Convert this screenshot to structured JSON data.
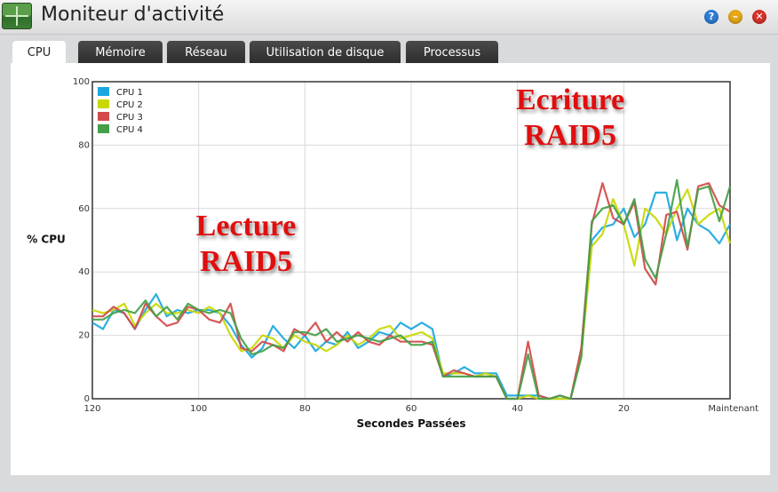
{
  "window": {
    "title": "Moniteur d'activité"
  },
  "controls": {
    "help": "?",
    "minimize": "–",
    "close": "✕"
  },
  "tabs": [
    {
      "label": "CPU",
      "active": true
    },
    {
      "label": "Mémoire",
      "active": false
    },
    {
      "label": "Réseau",
      "active": false
    },
    {
      "label": "Utilisation de disque",
      "active": false
    },
    {
      "label": "Processus",
      "active": false
    }
  ],
  "annotations": {
    "read": {
      "line1": "Lecture",
      "line2": "RAID5"
    },
    "write": {
      "line1": "Ecriture",
      "line2": "RAID5"
    }
  },
  "chart_data": {
    "type": "line",
    "xlabel": "Secondes Passées",
    "ylabel": "% CPU",
    "x_tick_labels": [
      "120",
      "100",
      "80",
      "60",
      "40",
      "20",
      "Maintenant"
    ],
    "y_tick_labels": [
      "0",
      "20",
      "40",
      "60",
      "80",
      "100"
    ],
    "xlim": [
      120,
      0
    ],
    "ylim": [
      0,
      100
    ],
    "grid": true,
    "legend_position": "top-left",
    "x": [
      120,
      118,
      116,
      114,
      112,
      110,
      108,
      106,
      104,
      102,
      100,
      98,
      96,
      94,
      92,
      90,
      88,
      86,
      84,
      82,
      80,
      78,
      76,
      74,
      72,
      70,
      68,
      66,
      64,
      62,
      60,
      58,
      56,
      54,
      52,
      50,
      48,
      46,
      44,
      42,
      40,
      38,
      36,
      34,
      32,
      30,
      28,
      26,
      24,
      22,
      20,
      18,
      16,
      14,
      12,
      10,
      8,
      6,
      4,
      2,
      0
    ],
    "series": [
      {
        "name": "CPU 1",
        "color": "#1aa7e0",
        "values": [
          24,
          22,
          28,
          27,
          22,
          28,
          33,
          26,
          28,
          27,
          28,
          28,
          27,
          23,
          17,
          13,
          16,
          23,
          19,
          16,
          20,
          15,
          18,
          17,
          21,
          16,
          18,
          21,
          20,
          24,
          22,
          24,
          22,
          7,
          8,
          10,
          8,
          8,
          8,
          1,
          1,
          1,
          1,
          0,
          0,
          0,
          15,
          50,
          54,
          55,
          60,
          51,
          55,
          65,
          65,
          50,
          60,
          55,
          53,
          49,
          55
        ]
      },
      {
        "name": "CPU 2",
        "color": "#c8d800",
        "values": [
          28,
          27,
          28,
          30,
          23,
          27,
          30,
          27,
          27,
          28,
          27,
          29,
          27,
          20,
          15,
          16,
          20,
          19,
          16,
          20,
          18,
          17,
          15,
          17,
          20,
          17,
          19,
          22,
          23,
          19,
          20,
          21,
          19,
          8,
          8,
          8,
          7,
          8,
          7,
          0,
          0,
          1,
          0,
          0,
          0,
          0,
          14,
          48,
          52,
          63,
          55,
          42,
          60,
          57,
          52,
          60,
          66,
          55,
          58,
          60,
          49
        ]
      },
      {
        "name": "CPU 3",
        "color": "#d24a4a",
        "values": [
          26,
          26,
          29,
          27,
          22,
          30,
          26,
          23,
          24,
          29,
          28,
          25,
          24,
          30,
          16,
          15,
          18,
          17,
          15,
          22,
          20,
          24,
          18,
          21,
          18,
          21,
          18,
          17,
          20,
          18,
          18,
          18,
          17,
          7,
          9,
          8,
          7,
          7,
          7,
          0,
          0,
          18,
          1,
          0,
          1,
          0,
          16,
          55,
          68,
          57,
          55,
          62,
          41,
          36,
          58,
          59,
          47,
          67,
          68,
          61,
          59
        ]
      },
      {
        "name": "CPU 4",
        "color": "#43a047",
        "values": [
          25,
          25,
          27,
          28,
          27,
          31,
          26,
          29,
          25,
          30,
          28,
          27,
          28,
          27,
          19,
          14,
          15,
          17,
          16,
          21,
          21,
          20,
          22,
          18,
          19,
          20,
          19,
          18,
          19,
          20,
          17,
          17,
          18,
          7,
          7,
          7,
          7,
          7,
          7,
          0,
          0,
          14,
          0,
          0,
          1,
          0,
          13,
          56,
          60,
          61,
          55,
          63,
          44,
          38,
          52,
          69,
          48,
          66,
          67,
          56,
          67
        ]
      }
    ]
  }
}
